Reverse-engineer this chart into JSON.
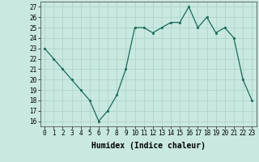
{
  "x": [
    0,
    1,
    2,
    3,
    4,
    5,
    6,
    7,
    8,
    9,
    10,
    11,
    12,
    13,
    14,
    15,
    16,
    17,
    18,
    19,
    20,
    21,
    22,
    23
  ],
  "y": [
    23,
    22,
    21,
    20,
    19,
    18,
    16,
    17,
    18.5,
    21,
    25,
    25,
    24.5,
    25,
    25.5,
    25.5,
    27,
    25,
    26,
    24.5,
    25,
    24,
    20,
    18
  ],
  "line_color": "#1a6b5a",
  "marker_color": "#1a6b5a",
  "bg_color": "#c8e8e0",
  "grid_color": "#b0d4cc",
  "xlabel": "Humidex (Indice chaleur)",
  "ylim": [
    15.5,
    27.5
  ],
  "xlim": [
    -0.5,
    23.5
  ],
  "yticks": [
    16,
    17,
    18,
    19,
    20,
    21,
    22,
    23,
    24,
    25,
    26,
    27
  ],
  "xticks": [
    0,
    1,
    2,
    3,
    4,
    5,
    6,
    7,
    8,
    9,
    10,
    11,
    12,
    13,
    14,
    15,
    16,
    17,
    18,
    19,
    20,
    21,
    22,
    23
  ],
  "xtick_labels": [
    "0",
    "1",
    "2",
    "3",
    "4",
    "5",
    "6",
    "7",
    "8",
    "9",
    "10",
    "11",
    "12",
    "13",
    "14",
    "15",
    "16",
    "17",
    "18",
    "19",
    "20",
    "21",
    "22",
    "23"
  ],
  "ytick_labels": [
    "16",
    "17",
    "18",
    "19",
    "20",
    "21",
    "22",
    "23",
    "24",
    "25",
    "26",
    "27"
  ],
  "axis_fontsize": 6.5,
  "tick_fontsize": 5.5,
  "xlabel_fontsize": 7
}
